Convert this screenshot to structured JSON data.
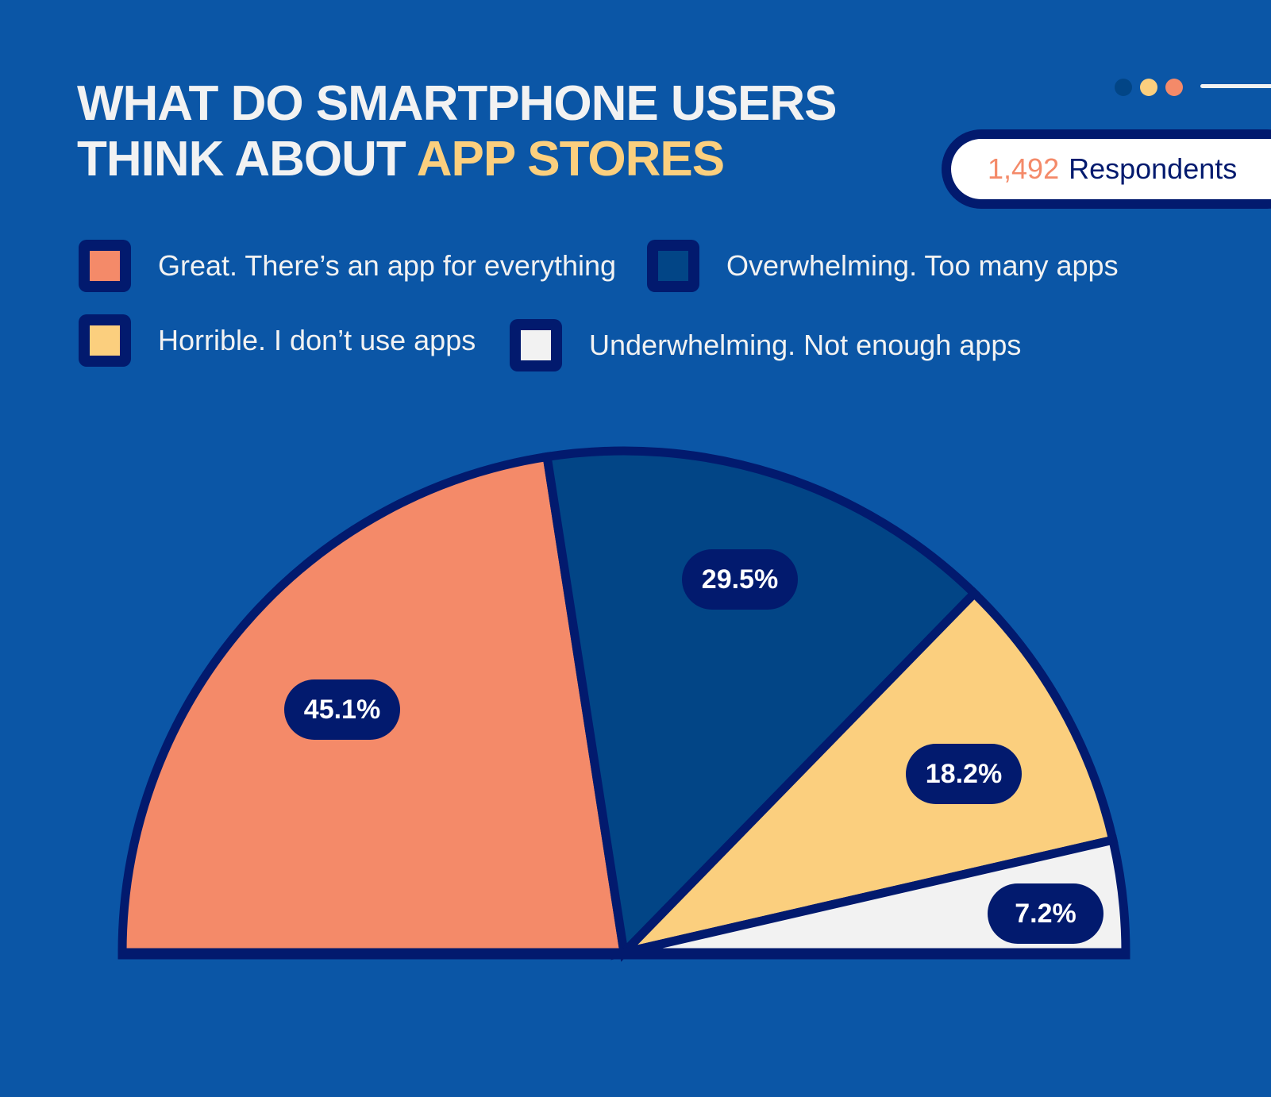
{
  "header": {
    "title_line1": "WHAT DO SMARTPHONE USERS",
    "title_line2_prefix": "THINK ABOUT ",
    "title_line2_highlight": "APP STORES"
  },
  "respondents": {
    "count": "1,492",
    "label": "Respondents"
  },
  "decor": {
    "dot_colors": [
      "#024586",
      "#fbcf7e",
      "#f48a69"
    ]
  },
  "colors": {
    "background": "#0b56a6",
    "outline": "#021a6e",
    "great": "#f48a69",
    "overwhelming": "#024586",
    "horrible": "#fbcf7e",
    "underwhelming": "#f2f2f2"
  },
  "legend": [
    {
      "label": "Great. There’s an app for everything",
      "color": "#f48a69"
    },
    {
      "label": "Overwhelming. Too many apps",
      "color": "#024586"
    },
    {
      "label": "Horrible. I don’t use apps",
      "color": "#fbcf7e"
    },
    {
      "label": "Underwhelming. Not enough apps",
      "color": "#f2f2f2"
    }
  ],
  "chart_data": {
    "type": "pie",
    "variant": "semicircle",
    "title": "What do smartphone users think about app stores",
    "subtitle": "1,492 Respondents",
    "categories": [
      "Great. There’s an app for everything",
      "Overwhelming. Too many apps",
      "Horrible. I don’t use apps",
      "Underwhelming. Not enough apps"
    ],
    "values": [
      45.1,
      29.5,
      18.2,
      7.2
    ],
    "value_labels": [
      "45.1%",
      "29.5%",
      "18.2%",
      "7.2%"
    ],
    "colors": [
      "#f48a69",
      "#024586",
      "#fbcf7e",
      "#f2f2f2"
    ],
    "unit": "%",
    "legend_position": "top"
  }
}
